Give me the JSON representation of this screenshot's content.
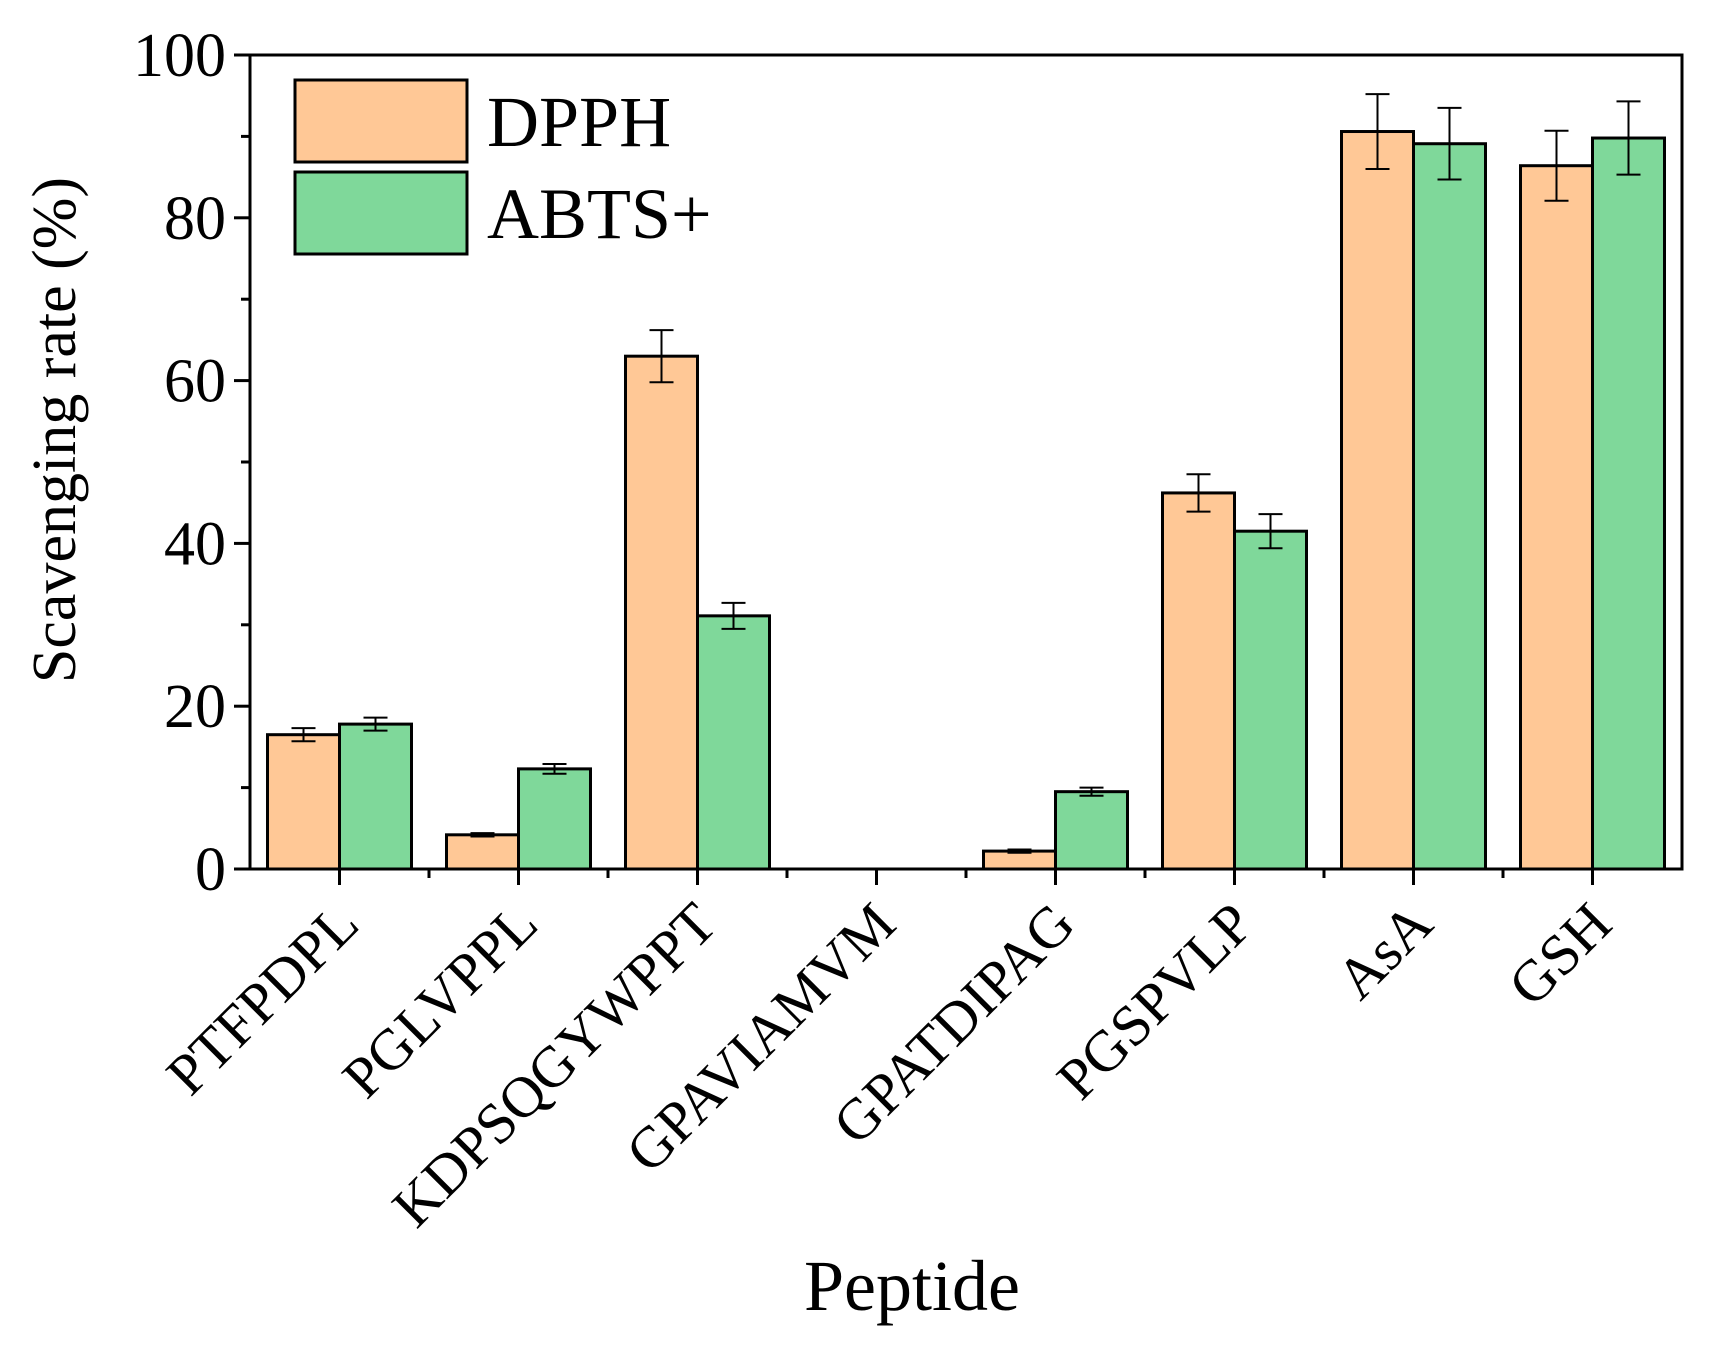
{
  "chart_data": {
    "type": "bar",
    "xlabel": "Peptide",
    "ylabel": "Scavenging rate (%)",
    "ylim": [
      0,
      100
    ],
    "yticks": [
      0,
      20,
      40,
      60,
      80,
      100
    ],
    "grid": false,
    "legend_position": "top-left",
    "categories": [
      "PTFPDPL",
      "PGLVPPL",
      "KDPSQGYWPPT",
      "GPAVIAMVM",
      "GPATDIPAG",
      "PGSPVLP",
      "AsA",
      "GSH"
    ],
    "series": [
      {
        "name": "DPPH",
        "color": "#FFC896",
        "values": [
          16.5,
          4.2,
          63.0,
          0,
          2.2,
          46.2,
          90.6,
          86.4
        ],
        "errors": [
          0.8,
          0.2,
          3.2,
          0,
          0.2,
          2.3,
          4.6,
          4.3
        ]
      },
      {
        "name": "ABTS+",
        "color": "#7FD89A",
        "values": [
          17.8,
          12.3,
          31.1,
          0,
          9.5,
          41.5,
          89.1,
          89.8
        ],
        "errors": [
          0.8,
          0.6,
          1.6,
          0,
          0.5,
          2.1,
          4.4,
          4.5
        ]
      }
    ]
  }
}
